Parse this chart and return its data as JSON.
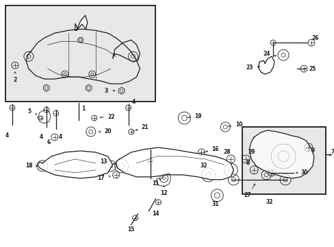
{
  "bg": "#ffffff",
  "dark": "#1a1a1a",
  "gray_fill": "#e8e8e8",
  "figsize": [
    4.89,
    3.6
  ],
  "dpi": 100
}
